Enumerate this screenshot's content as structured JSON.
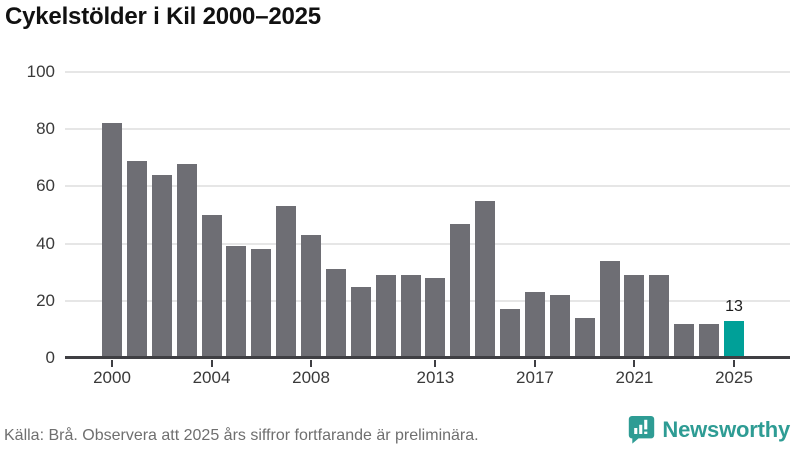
{
  "title": "Cykelstölder i Kil 2000–2025",
  "footer": {
    "source_note": "Källa: Brå. Observera att 2025 års siffror fortfarande är preliminära."
  },
  "branding": {
    "name": "Newsworthy",
    "logo_color": "#2e9c94"
  },
  "colors": {
    "bar": "#6e6e74",
    "highlight": "#00a098",
    "axis": "#3f3f43",
    "gridline": "#e6e6e6",
    "title_text": "#111111",
    "tick_text": "#3a3a3a",
    "footer_text": "#6f6f6f"
  },
  "chart_data": {
    "type": "bar",
    "title": "Cykelstölder i Kil 2000–2025",
    "xlabel": "",
    "ylabel": "",
    "categories": [
      2000,
      2001,
      2002,
      2003,
      2004,
      2005,
      2006,
      2007,
      2008,
      2009,
      2010,
      2011,
      2012,
      2013,
      2014,
      2015,
      2016,
      2017,
      2018,
      2019,
      2020,
      2021,
      2022,
      2023,
      2024,
      2025
    ],
    "values": [
      82,
      69,
      64,
      68,
      50,
      39,
      38,
      53,
      43,
      31,
      25,
      29,
      29,
      28,
      47,
      55,
      17,
      23,
      22,
      14,
      34,
      29,
      29,
      12,
      12,
      13
    ],
    "ylim": [
      0,
      100
    ],
    "yticks": [
      0,
      20,
      40,
      60,
      80,
      100
    ],
    "xticks": [
      2000,
      2004,
      2008,
      2013,
      2017,
      2021,
      2025
    ],
    "grid": "horizontal",
    "legend": "none",
    "bar_color": "#6e6e74",
    "highlight_index": 25,
    "highlight_color": "#00a098",
    "highlight_label": "13"
  }
}
